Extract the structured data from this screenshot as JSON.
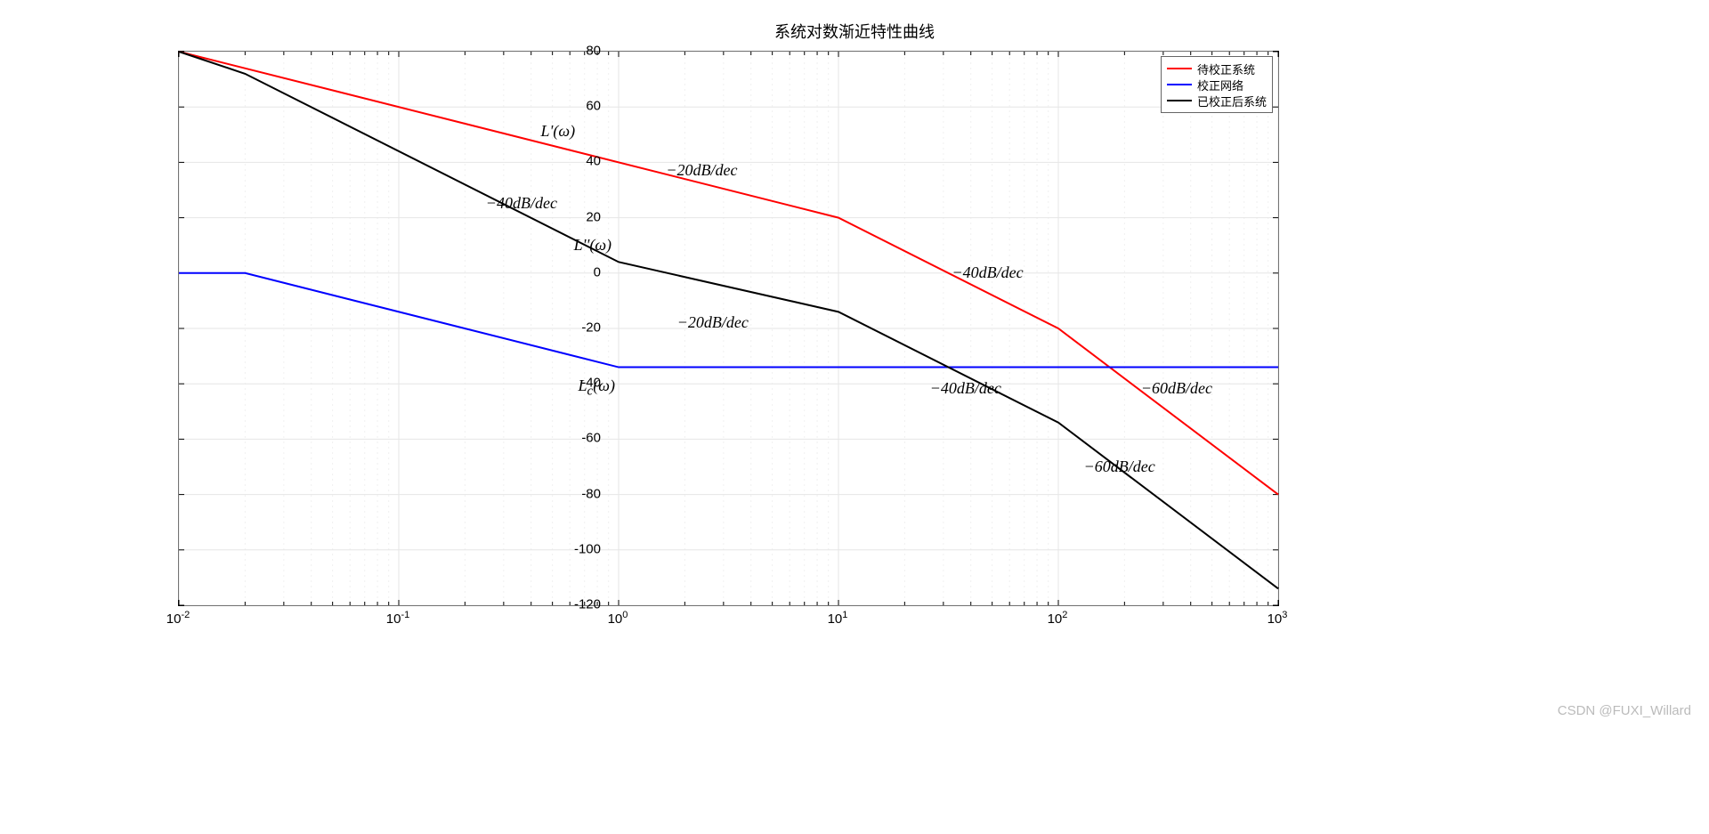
{
  "chart": {
    "title": "系统对数渐近特性曲线",
    "background_color": "#ffffff",
    "grid_major_color": "#e6e6e6",
    "grid_minor_color": "#f0f0f0",
    "axis_color": "#000000",
    "tick_font_size": 15,
    "title_font_size": 18,
    "annotation_font_size": 18,
    "annotation_font_family": "Times New Roman",
    "y": {
      "min": -120,
      "max": 80,
      "ticks": [
        -120,
        -100,
        -80,
        -60,
        -40,
        -20,
        0,
        20,
        40,
        60,
        80
      ]
    },
    "x": {
      "log_min": -2,
      "log_max": 3,
      "decade_labels": [
        {
          "base": "10",
          "exp": "-2"
        },
        {
          "base": "10",
          "exp": "-1"
        },
        {
          "base": "10",
          "exp": "0"
        },
        {
          "base": "10",
          "exp": "1"
        },
        {
          "base": "10",
          "exp": "2"
        },
        {
          "base": "10",
          "exp": "3"
        }
      ]
    },
    "series": [
      {
        "name": "待校正系统",
        "color": "#ff0000",
        "line_width": 2,
        "points": [
          {
            "x": 0.01,
            "y": 80
          },
          {
            "x": 10,
            "y": 20
          },
          {
            "x": 100,
            "y": -20
          },
          {
            "x": 1000,
            "y": -80
          }
        ]
      },
      {
        "name": "校正网络",
        "color": "#0000ff",
        "line_width": 2,
        "points": [
          {
            "x": 0.01,
            "y": 0
          },
          {
            "x": 0.02,
            "y": 0
          },
          {
            "x": 1,
            "y": -34
          },
          {
            "x": 1000,
            "y": -34
          }
        ]
      },
      {
        "name": "已校正后系统",
        "color": "#000000",
        "line_width": 2,
        "points": [
          {
            "x": 0.01,
            "y": 80
          },
          {
            "x": 0.02,
            "y": 72
          },
          {
            "x": 1,
            "y": 4
          },
          {
            "x": 10,
            "y": -14
          },
          {
            "x": 100,
            "y": -54
          },
          {
            "x": 1000,
            "y": -114
          }
        ]
      }
    ],
    "annotations": [
      {
        "text_html": "<i>L'</i>(<i>ω</i>)",
        "x_log": -0.35,
        "y_data": 51
      },
      {
        "text_html": "−20<i>dB</i>/<i>dec</i>",
        "x_log": 0.22,
        "y_data": 37
      },
      {
        "text_html": "−40<i>dB</i>/<i>dec</i>",
        "x_log": 1.52,
        "y_data": 0
      },
      {
        "text_html": "−60<i>dB</i>/<i>dec</i>",
        "x_log": 2.38,
        "y_data": -42
      },
      {
        "text_html": "−40<i>dB</i>/<i>dec</i>",
        "x_log": -0.6,
        "y_data": 25
      },
      {
        "text_html": "<i>L''</i>(<i>ω</i>)",
        "x_log": -0.2,
        "y_data": 10
      },
      {
        "text_html": "−20<i>dB</i>/<i>dec</i>",
        "x_log": 0.27,
        "y_data": -18
      },
      {
        "text_html": "−40<i>dB</i>/<i>dec</i>",
        "x_log": 1.42,
        "y_data": -42
      },
      {
        "text_html": "−60<i>dB</i>/<i>dec</i>",
        "x_log": 2.12,
        "y_data": -70
      },
      {
        "text_html": "<i>L<sub>c</sub></i>(<i>ω</i>)",
        "x_log": -0.18,
        "y_data": -41
      }
    ],
    "legend": {
      "items": [
        {
          "label": "待校正系统",
          "color": "#ff0000"
        },
        {
          "label": "校正网络",
          "color": "#0000ff"
        },
        {
          "label": "已校正后系统",
          "color": "#000000"
        }
      ]
    },
    "watermark": "CSDN @FUXI_Willard"
  }
}
